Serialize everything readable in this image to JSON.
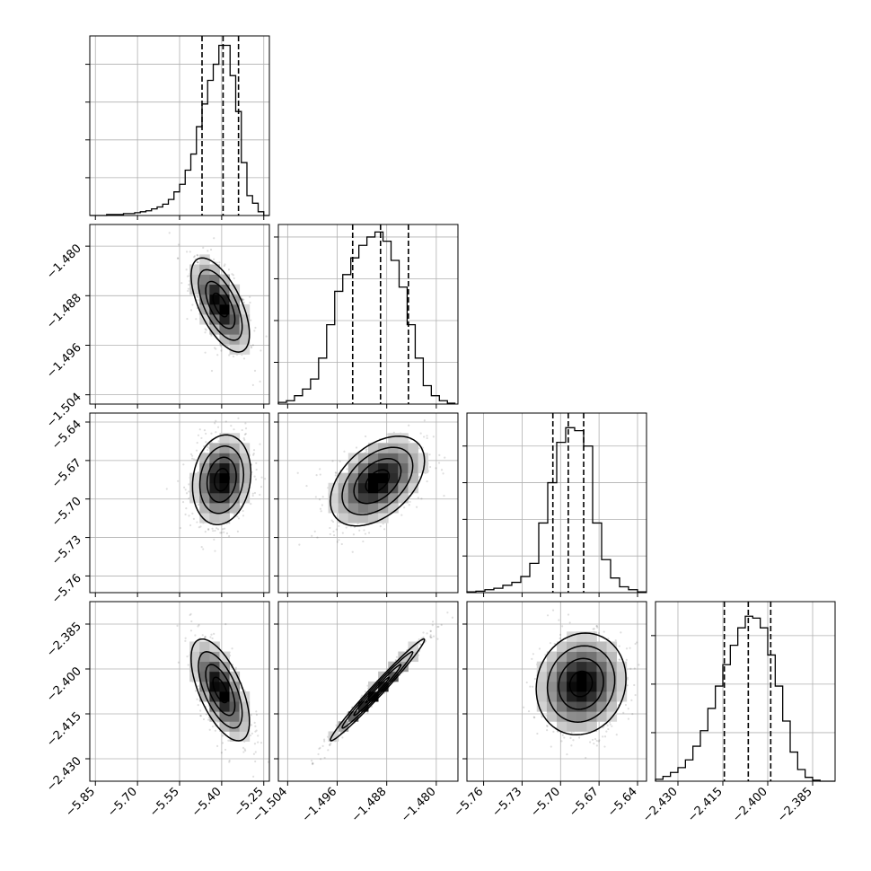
{
  "chart_data": {
    "type": "corner",
    "title": "",
    "variables": [
      {
        "label": "",
        "range": [
          -5.87,
          -5.23
        ],
        "ticks": [
          -5.85,
          -5.7,
          -5.55,
          -5.4,
          -5.25
        ],
        "tick_labels": [
          "−5.85",
          "−5.70",
          "−5.55",
          "−5.40",
          "−5.25"
        ],
        "quantiles": [
          -5.47,
          -5.395,
          -5.34
        ],
        "hist_bins": [
          -5.87,
          -5.85,
          -5.83,
          -5.81,
          -5.79,
          -5.77,
          -5.75,
          -5.73,
          -5.71,
          -5.69,
          -5.67,
          -5.65,
          -5.63,
          -5.61,
          -5.59,
          -5.57,
          -5.55,
          -5.53,
          -5.51,
          -5.49,
          -5.47,
          -5.45,
          -5.43,
          -5.41,
          -5.39,
          -5.37,
          -5.35,
          -5.33,
          -5.31,
          -5.29,
          -5.27,
          -5.25,
          -5.23
        ],
        "hist_counts": [
          0,
          0,
          0,
          1,
          1,
          1,
          2,
          2,
          3,
          4,
          5,
          7,
          9,
          12,
          17,
          25,
          33,
          48,
          65,
          94,
          118,
          143,
          160,
          180,
          180,
          148,
          110,
          56,
          21,
          13,
          4,
          0
        ],
        "hist_ylim": [
          0,
          190
        ],
        "hist_ticks": [
          40,
          80,
          120,
          160
        ]
      },
      {
        "label": "",
        "range": [
          -1.5055,
          -1.4765
        ],
        "ticks": [
          -1.504,
          -1.496,
          -1.488,
          -1.48
        ],
        "tick_labels": [
          "−1.504",
          "−1.496",
          "−1.488",
          "−1.480"
        ],
        "quantiles": [
          -1.4935,
          -1.489,
          -1.4845
        ],
        "hist_bins": [
          -1.5055,
          -1.5042,
          -1.5029,
          -1.5016,
          -1.5003,
          -1.499,
          -1.4977,
          -1.4964,
          -1.4951,
          -1.4938,
          -1.4925,
          -1.4912,
          -1.4899,
          -1.4886,
          -1.4873,
          -1.486,
          -1.4847,
          -1.4834,
          -1.4821,
          -1.4808,
          -1.4795,
          -1.4782,
          -1.4769
        ],
        "hist_counts": [
          2,
          4,
          10,
          18,
          30,
          55,
          95,
          135,
          155,
          175,
          190,
          200,
          206,
          195,
          172,
          140,
          95,
          55,
          22,
          10,
          4,
          1
        ],
        "hist_ylim": [
          0,
          215
        ],
        "hist_ticks": [
          50,
          100,
          150,
          200
        ]
      },
      {
        "label": "",
        "range": [
          -5.773,
          -5.633
        ],
        "ticks": [
          -5.76,
          -5.73,
          -5.7,
          -5.67,
          -5.64
        ],
        "tick_labels": [
          "−5.76",
          "−5.73",
          "−5.70",
          "−5.67",
          "−5.64"
        ],
        "quantiles": [
          -5.706,
          -5.694,
          -5.682
        ],
        "hist_bins": [
          -5.773,
          -5.766,
          -5.759,
          -5.752,
          -5.745,
          -5.738,
          -5.731,
          -5.724,
          -5.717,
          -5.71,
          -5.703,
          -5.696,
          -5.689,
          -5.682,
          -5.675,
          -5.668,
          -5.661,
          -5.654,
          -5.647,
          -5.64,
          -5.633
        ],
        "hist_counts": [
          1,
          2,
          4,
          6,
          10,
          14,
          22,
          40,
          95,
          150,
          205,
          225,
          221,
          200,
          95,
          45,
          20,
          8,
          4,
          1
        ],
        "hist_ylim": [
          0,
          245
        ],
        "hist_ticks": [
          50,
          100,
          150,
          200
        ]
      },
      {
        "label": "",
        "range": [
          -2.4375,
          -2.3775
        ],
        "ticks": [
          -2.43,
          -2.415,
          -2.4,
          -2.385
        ],
        "tick_labels": [
          "−2.430",
          "−2.415",
          "−2.400",
          "−2.385"
        ],
        "quantiles": [
          -2.4145,
          -2.4065,
          -2.399
        ],
        "hist_bins": [
          -2.4375,
          -2.435,
          -2.4325,
          -2.43,
          -2.4275,
          -2.425,
          -2.4225,
          -2.42,
          -2.4175,
          -2.415,
          -2.4125,
          -2.41,
          -2.4075,
          -2.405,
          -2.4025,
          -2.4,
          -2.3975,
          -2.395,
          -2.3925,
          -2.39,
          -2.3875,
          -2.385,
          -2.3825,
          -2.38,
          -2.3775
        ],
        "hist_counts": [
          2,
          5,
          9,
          14,
          22,
          36,
          52,
          75,
          98,
          120,
          140,
          158,
          170,
          168,
          158,
          130,
          98,
          62,
          30,
          12,
          4,
          1,
          0,
          0
        ],
        "hist_ylim": [
          0,
          185
        ],
        "hist_ticks": [
          50,
          100,
          150
        ]
      }
    ],
    "pairs": [
      {
        "x_var": 0,
        "y_var": 1,
        "mean": [
          -5.405,
          -1.4895
        ],
        "std": [
          0.052,
          0.0038
        ],
        "corr": -0.62
      },
      {
        "x_var": 0,
        "y_var": 2,
        "mean": [
          -5.4,
          -5.685
        ],
        "std": [
          0.052,
          0.0175
        ],
        "corr": 0.15
      },
      {
        "x_var": 1,
        "y_var": 2,
        "mean": [
          -1.4895,
          -5.686
        ],
        "std": [
          0.0038,
          0.0175
        ],
        "corr": 0.45
      },
      {
        "x_var": 0,
        "y_var": 3,
        "mean": [
          -5.405,
          -2.407
        ],
        "std": [
          0.052,
          0.0085
        ],
        "corr": -0.62
      },
      {
        "x_var": 1,
        "y_var": 3,
        "mean": [
          -1.4895,
          -2.407
        ],
        "std": [
          0.0038,
          0.0085
        ],
        "corr": 0.985
      },
      {
        "x_var": 2,
        "y_var": 3,
        "mean": [
          -5.684,
          -2.405
        ],
        "std": [
          0.0175,
          0.0085
        ],
        "corr": 0.1
      }
    ],
    "grid": true,
    "legend": "none"
  }
}
